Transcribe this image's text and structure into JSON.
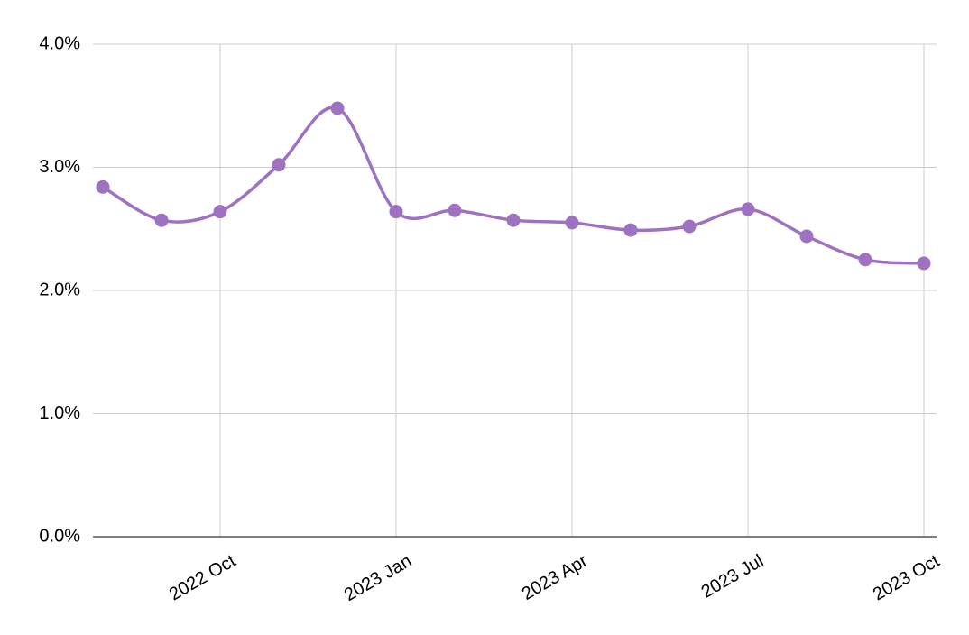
{
  "chart_data": {
    "type": "line",
    "x": [
      "2022-08",
      "2022-09",
      "2022-10",
      "2022-11",
      "2022-12",
      "2023-01",
      "2023-02",
      "2023-03",
      "2023-04",
      "2023-05",
      "2023-06",
      "2023-07",
      "2023-08",
      "2023-09",
      "2023-10"
    ],
    "series": [
      {
        "color": "#9e72c0",
        "values": [
          2.84,
          2.57,
          2.64,
          3.02,
          3.48,
          2.64,
          2.65,
          2.57,
          2.55,
          2.49,
          2.52,
          2.66,
          2.44,
          2.25,
          2.22
        ]
      }
    ],
    "xticks": [
      {
        "value": "2022-10",
        "label": "2022 Oct"
      },
      {
        "value": "2023-01",
        "label": "2023 Jan"
      },
      {
        "value": "2023-04",
        "label": "2023 Apr"
      },
      {
        "value": "2023-07",
        "label": "2023 Jul"
      },
      {
        "value": "2023-10",
        "label": "2023 Oct"
      }
    ],
    "ylim": [
      0,
      4
    ],
    "yticks": [
      {
        "value": 0,
        "label": "0.0%"
      },
      {
        "value": 1,
        "label": "1.0%"
      },
      {
        "value": 2,
        "label": "2.0%"
      },
      {
        "value": 3,
        "label": "3.0%"
      },
      {
        "value": 4,
        "label": "4.0%"
      }
    ],
    "grid": true
  }
}
